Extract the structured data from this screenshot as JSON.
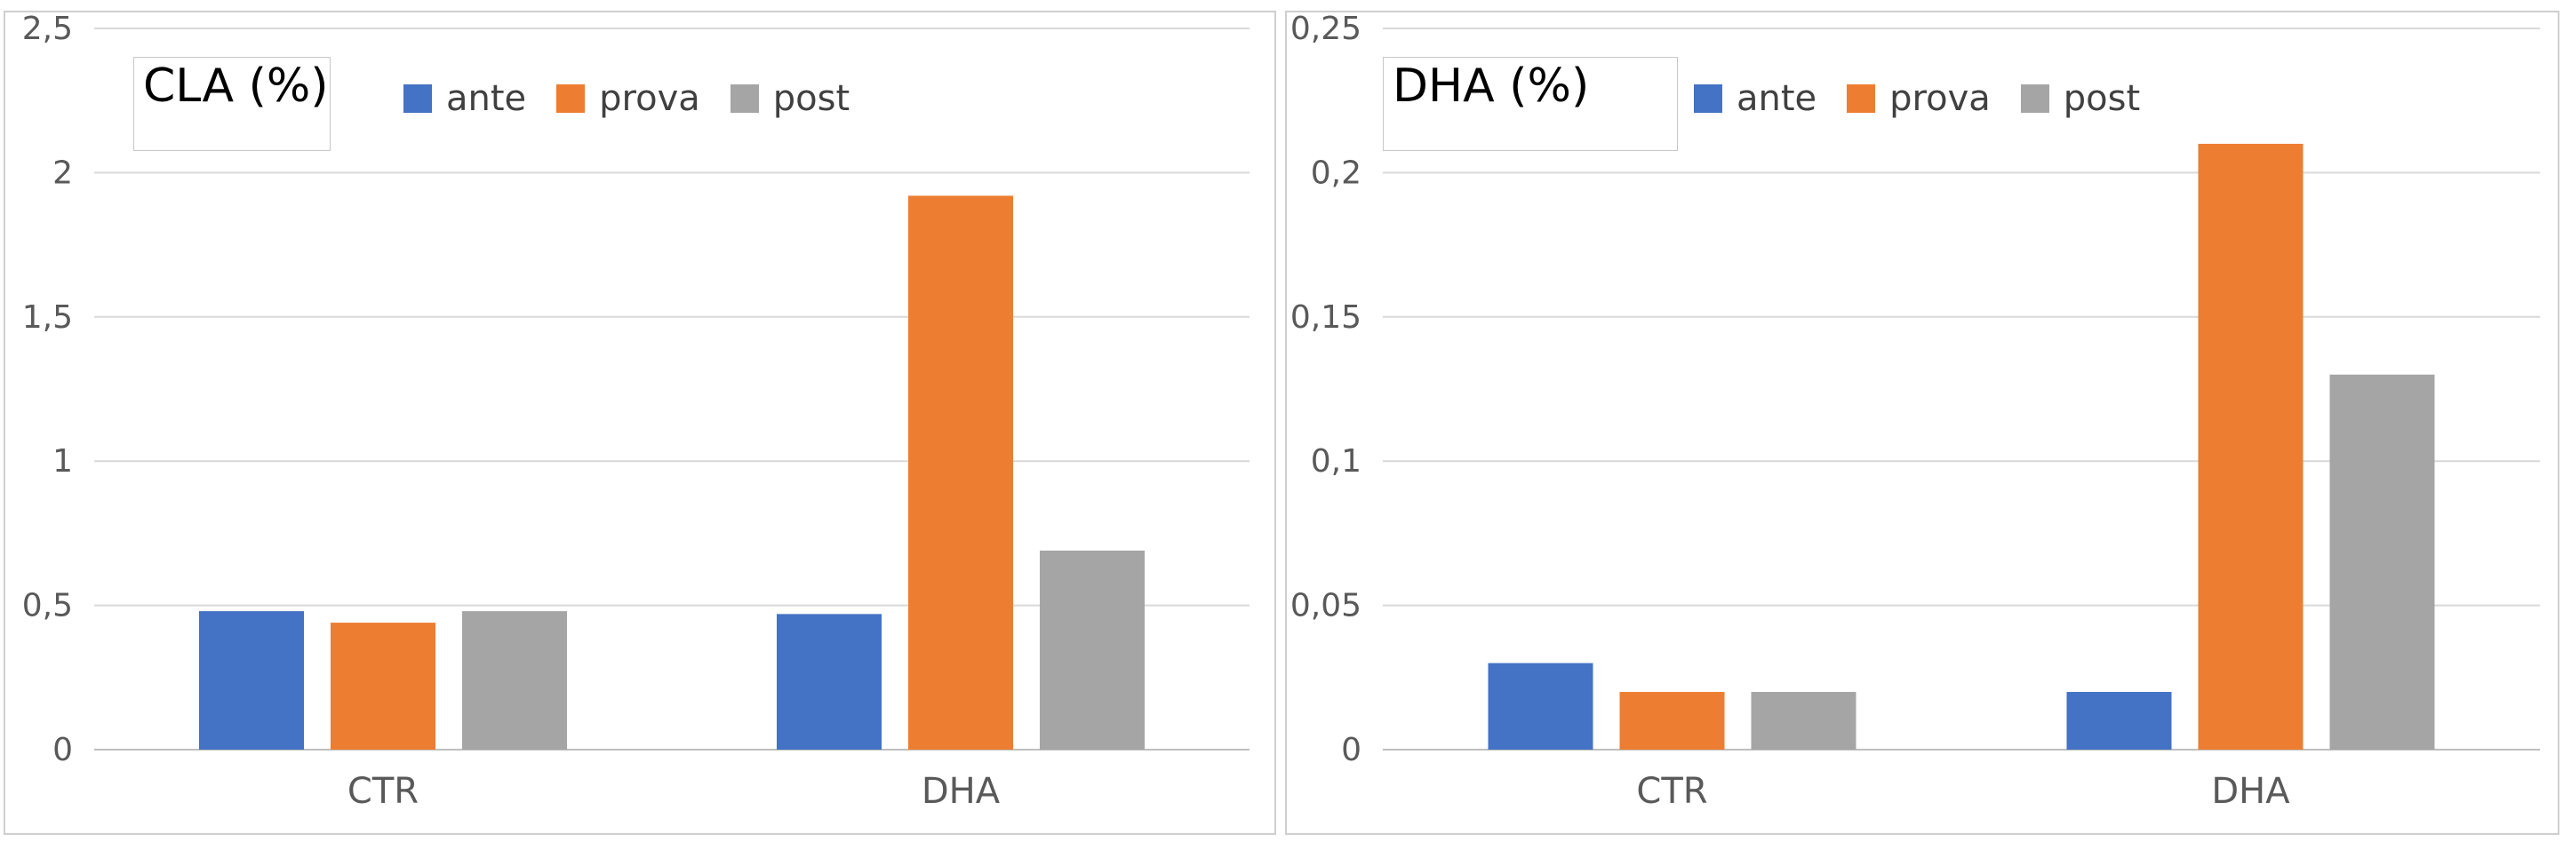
{
  "chart_data": [
    {
      "type": "bar",
      "title": "CLA (%)",
      "categories": [
        "CTR",
        "DHA"
      ],
      "series": [
        {
          "name": "ante",
          "color": "#4472C4",
          "values": [
            0.48,
            0.47
          ]
        },
        {
          "name": "prova",
          "color": "#ED7D31",
          "values": [
            0.44,
            1.92
          ]
        },
        {
          "name": "post",
          "color": "#A5A5A5",
          "values": [
            0.48,
            0.69
          ]
        }
      ],
      "ylim": [
        0,
        2.5
      ],
      "yticks": [
        0,
        0.5,
        1,
        1.5,
        2,
        2.5
      ],
      "ytick_labels": [
        "0",
        "0,5",
        "1",
        "1,5",
        "2",
        "2,5"
      ],
      "grid": "horizontal",
      "legend": "top"
    },
    {
      "type": "bar",
      "title": "DHA (%)",
      "categories": [
        "CTR",
        "DHA"
      ],
      "series": [
        {
          "name": "ante",
          "color": "#4472C4",
          "values": [
            0.03,
            0.02
          ]
        },
        {
          "name": "prova",
          "color": "#ED7D31",
          "values": [
            0.02,
            0.21
          ]
        },
        {
          "name": "post",
          "color": "#A5A5A5",
          "values": [
            0.02,
            0.13
          ]
        }
      ],
      "ylim": [
        0,
        0.25
      ],
      "yticks": [
        0,
        0.05,
        0.1,
        0.15,
        0.2,
        0.25
      ],
      "ytick_labels": [
        "0",
        "0,05",
        "0,1",
        "0,15",
        "0,2",
        "0,25"
      ],
      "grid": "horizontal",
      "legend": "top"
    }
  ]
}
